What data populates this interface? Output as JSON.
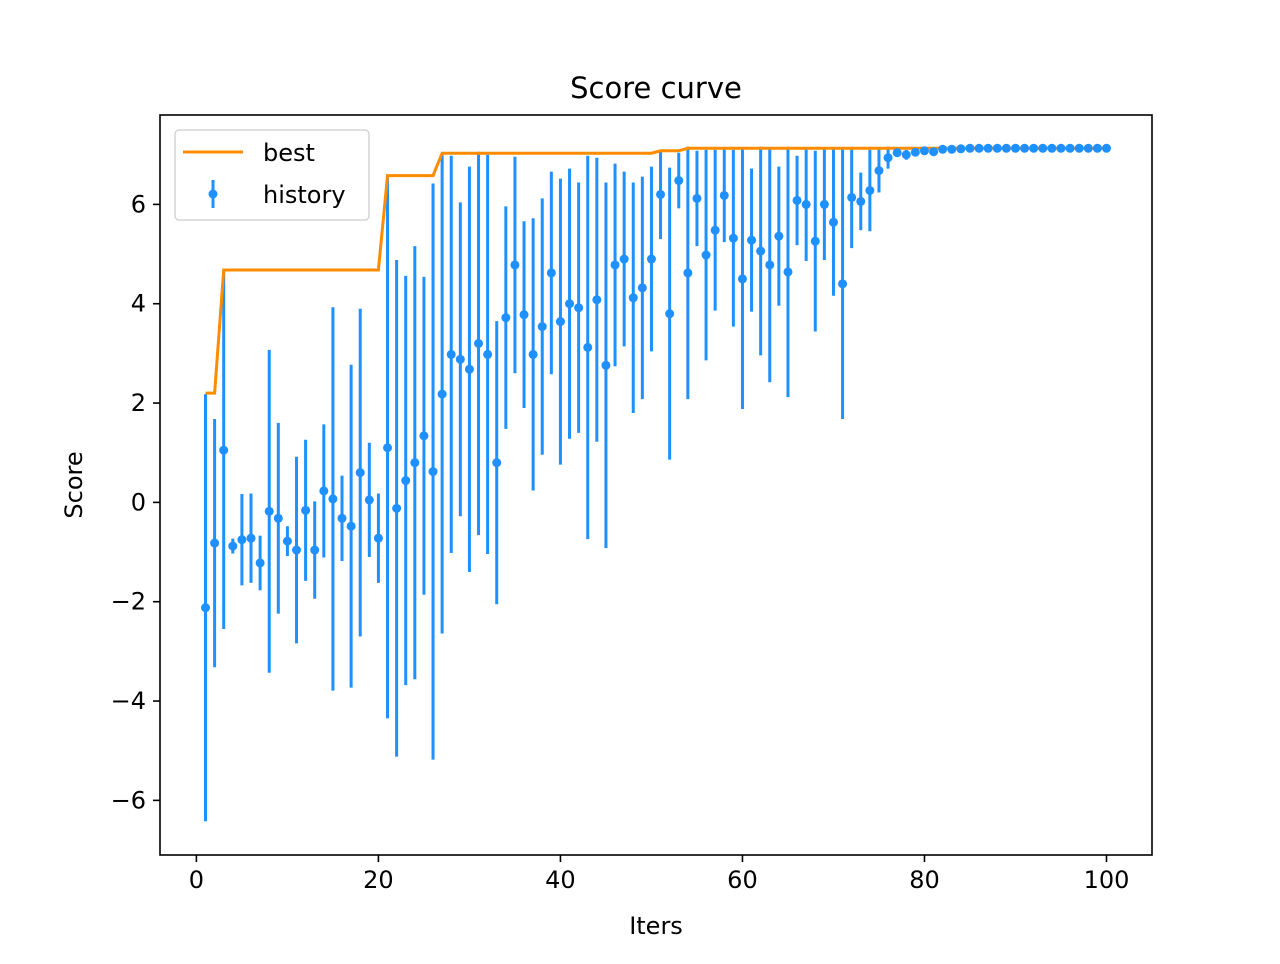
{
  "chart_data": {
    "type": "scatter",
    "title": "Score curve",
    "xlabel": "Iters",
    "ylabel": "Score",
    "xlim": [
      -4,
      105
    ],
    "ylim": [
      -7.1,
      7.8
    ],
    "xticks": [
      0,
      20,
      40,
      60,
      80,
      100
    ],
    "yticks": [
      -6,
      -4,
      -2,
      0,
      2,
      4,
      6
    ],
    "xtick_labels": [
      "0",
      "20",
      "40",
      "60",
      "80",
      "100"
    ],
    "ytick_labels": [
      "−6",
      "−4",
      "−2",
      "0",
      "2",
      "4",
      "6"
    ],
    "legend_position": "upper-left",
    "colors": {
      "best": "#ff8c00",
      "history": "#1e90ff"
    },
    "series": [
      {
        "name": "best",
        "kind": "line",
        "x": [
          1,
          2,
          3,
          20,
          21,
          26,
          27,
          50,
          51,
          53,
          54,
          81,
          100
        ],
        "y": [
          2.2,
          2.2,
          4.68,
          4.68,
          6.58,
          6.58,
          7.03,
          7.03,
          7.08,
          7.08,
          7.13,
          7.13,
          7.13
        ]
      },
      {
        "name": "history",
        "kind": "errorbar",
        "x": [
          1,
          2,
          3,
          4,
          5,
          6,
          7,
          8,
          9,
          10,
          11,
          12,
          13,
          14,
          15,
          16,
          17,
          18,
          19,
          20,
          21,
          22,
          23,
          24,
          25,
          26,
          27,
          28,
          29,
          30,
          31,
          32,
          33,
          34,
          35,
          36,
          37,
          38,
          39,
          40,
          41,
          42,
          43,
          44,
          45,
          46,
          47,
          48,
          49,
          50,
          51,
          52,
          53,
          54,
          55,
          56,
          57,
          58,
          59,
          60,
          61,
          62,
          63,
          64,
          65,
          66,
          67,
          68,
          69,
          70,
          71,
          72,
          73,
          74,
          75,
          76,
          77,
          78,
          79,
          80,
          81,
          82,
          83,
          84,
          85,
          86,
          87,
          88,
          89,
          90,
          91,
          92,
          93,
          94,
          95,
          96,
          97,
          98,
          99,
          100
        ],
        "y": [
          -2.12,
          -0.82,
          1.05,
          -0.88,
          -0.75,
          -0.72,
          -1.22,
          -0.18,
          -0.32,
          -0.78,
          -0.96,
          -0.16,
          -0.96,
          0.23,
          0.07,
          -0.32,
          -0.48,
          0.6,
          0.05,
          -0.72,
          1.1,
          -0.12,
          0.44,
          0.8,
          1.34,
          0.62,
          2.18,
          2.98,
          2.88,
          2.68,
          3.2,
          2.98,
          0.8,
          3.72,
          4.78,
          3.78,
          2.98,
          3.54,
          4.62,
          3.64,
          4.0,
          3.92,
          3.12,
          4.08,
          2.76,
          4.78,
          4.9,
          4.12,
          4.32,
          4.9,
          6.2,
          3.8,
          6.48,
          4.62,
          6.12,
          4.98,
          5.48,
          6.18,
          5.32,
          4.5,
          5.28,
          5.06,
          4.78,
          5.36,
          4.64,
          6.08,
          6.0,
          5.26,
          6.0,
          5.64,
          4.4,
          6.14,
          6.06,
          6.28,
          6.68,
          6.94,
          7.04,
          7.0,
          7.05,
          7.08,
          7.06,
          7.11,
          7.11,
          7.12,
          7.13,
          7.13,
          7.13,
          7.13,
          7.13,
          7.13,
          7.13,
          7.13,
          7.13,
          7.13,
          7.13,
          7.13,
          7.13,
          7.13,
          7.13,
          7.13
        ],
        "yerr": [
          4.3,
          2.5,
          3.6,
          0.15,
          0.92,
          0.9,
          0.55,
          3.25,
          1.92,
          0.3,
          1.88,
          1.42,
          0.98,
          1.34,
          3.86,
          0.86,
          3.25,
          3.3,
          1.15,
          0.9,
          5.45,
          5.0,
          4.12,
          4.36,
          3.2,
          5.8,
          4.82,
          4.0,
          3.16,
          4.08,
          3.86,
          4.02,
          2.85,
          2.24,
          2.18,
          1.88,
          2.74,
          2.58,
          2.04,
          2.88,
          2.72,
          2.52,
          3.86,
          2.86,
          3.68,
          2.04,
          1.76,
          2.32,
          2.24,
          1.86,
          0.9,
          2.94,
          0.56,
          2.54,
          0.96,
          2.12,
          1.62,
          0.94,
          1.78,
          2.62,
          1.44,
          2.1,
          2.36,
          1.4,
          2.52,
          0.9,
          1.14,
          1.82,
          1.12,
          1.48,
          2.72,
          1.02,
          0.58,
          0.82,
          0.44,
          0.22,
          0.08,
          0.1,
          0.05,
          0.04,
          0.02,
          0.02,
          0.02,
          0.01,
          0.01,
          0.01,
          0.01,
          0.01,
          0.01,
          0.01,
          0.01,
          0.01,
          0.01,
          0.01,
          0.01,
          0.01,
          0.01,
          0.01,
          0.01,
          0.01
        ]
      }
    ]
  }
}
